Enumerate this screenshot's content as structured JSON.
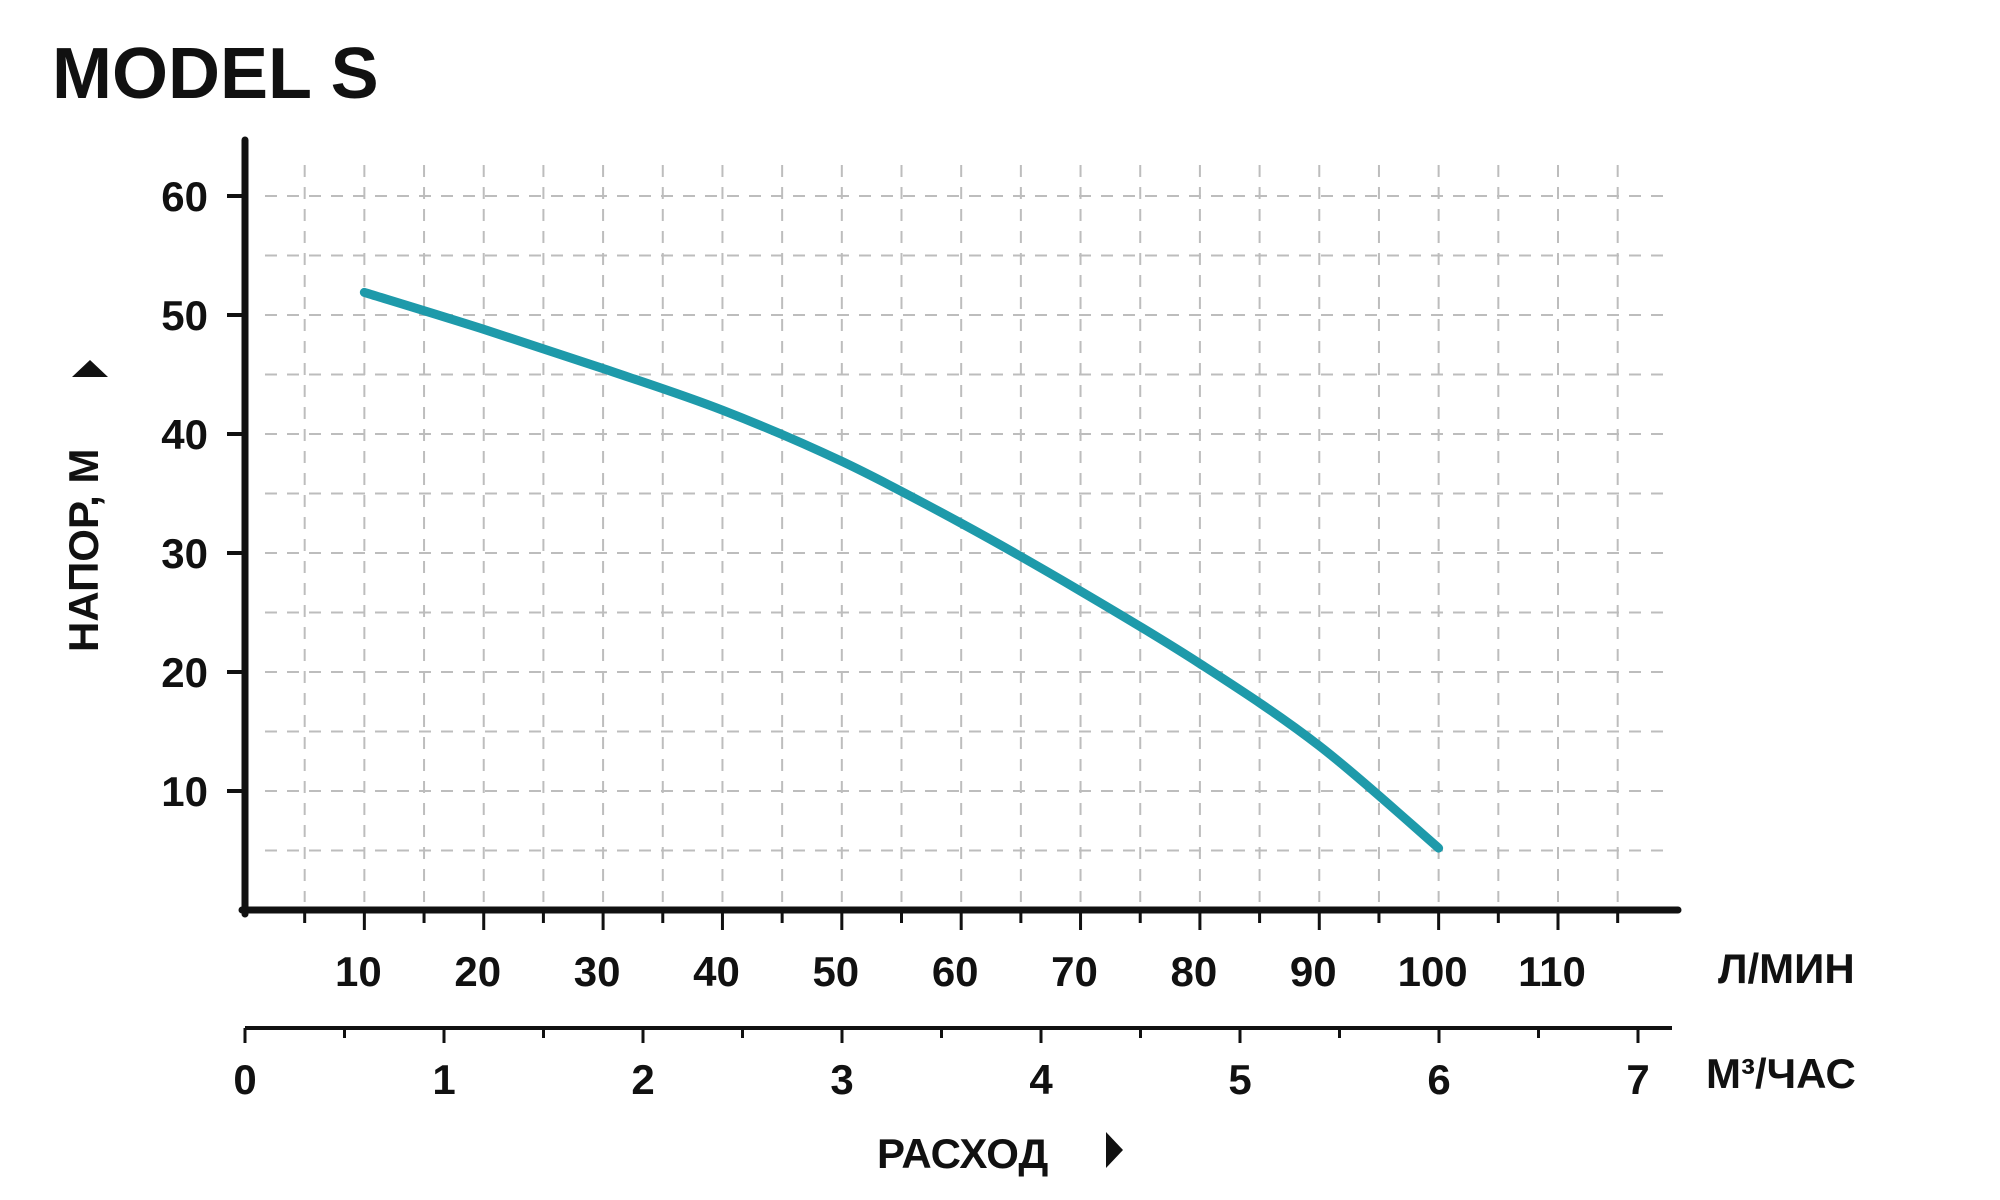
{
  "chart_data": {
    "type": "line",
    "title": "MODEL S",
    "ylabel": "НАПОР, М",
    "xlabel": "РАСХОД",
    "x_units_primary": "Л/МИН",
    "x_units_secondary": "М³/ЧАС",
    "ylim": [
      0,
      65
    ],
    "xlim": [
      0,
      120
    ],
    "x_secondary_lim": [
      0,
      7.2
    ],
    "y_ticks": [
      "10",
      "20",
      "30",
      "40",
      "50",
      "60"
    ],
    "x_ticks_primary": [
      "10",
      "20",
      "30",
      "40",
      "50",
      "60",
      "70",
      "80",
      "90",
      "100",
      "110"
    ],
    "x_ticks_secondary": [
      "0",
      "1",
      "2",
      "3",
      "4",
      "5",
      "6",
      "7"
    ],
    "grid": true,
    "series": [
      {
        "color": "#1E9AAA",
        "x": [
          10,
          20,
          30,
          40,
          50,
          60,
          70,
          80,
          90,
          100
        ],
        "y": [
          51.9,
          48.8,
          45.5,
          42,
          37.7,
          32.5,
          26.8,
          20.7,
          13.8,
          5.2
        ]
      }
    ]
  }
}
